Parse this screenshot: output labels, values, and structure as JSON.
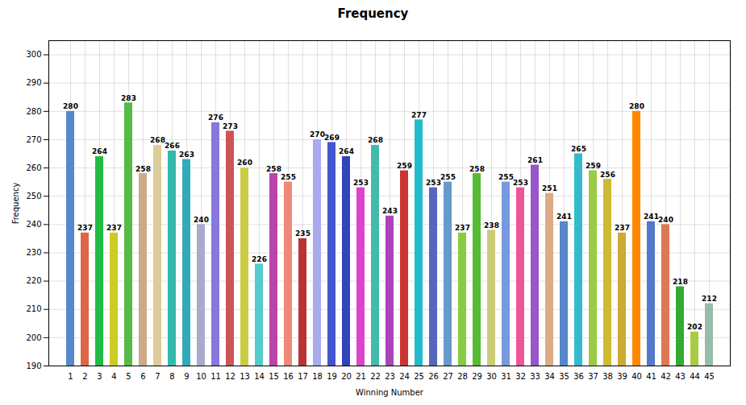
{
  "chart_data": {
    "type": "bar",
    "title": "Frequency",
    "xlabel": "Winning Number",
    "ylabel": "Frequency",
    "categories": [
      1,
      2,
      3,
      4,
      5,
      6,
      7,
      8,
      9,
      10,
      11,
      12,
      13,
      14,
      15,
      16,
      17,
      18,
      19,
      20,
      21,
      22,
      23,
      24,
      25,
      26,
      27,
      28,
      29,
      30,
      31,
      32,
      33,
      34,
      35,
      36,
      37,
      38,
      39,
      40,
      41,
      42,
      43,
      44,
      45
    ],
    "values": [
      280,
      237,
      264,
      237,
      283,
      258,
      268,
      266,
      263,
      240,
      276,
      273,
      260,
      226,
      258,
      255,
      235,
      270,
      269,
      264,
      253,
      268,
      243,
      259,
      277,
      253,
      255,
      237,
      258,
      238,
      255,
      253,
      261,
      251,
      241,
      265,
      259,
      256,
      237,
      280,
      241,
      240,
      218,
      202,
      212
    ],
    "colors": [
      "#5588CC",
      "#DD6644",
      "#22BB44",
      "#CCCC22",
      "#55BB44",
      "#CCAA88",
      "#DDCC99",
      "#33BBAA",
      "#33AABB",
      "#AAAACC",
      "#8877DD",
      "#CC5555",
      "#CCCC44",
      "#55CCCC",
      "#BB44AA",
      "#EE8877",
      "#BB3333",
      "#AAAAEE",
      "#4455CC",
      "#3344BB",
      "#DD44CC",
      "#44BBAA",
      "#AA44BB",
      "#CC3333",
      "#22BBCC",
      "#5566BB",
      "#6699CC",
      "#88CC44",
      "#55BB33",
      "#CCCC77",
      "#7799DD",
      "#EE5599",
      "#9955CC",
      "#DDAA88",
      "#5588CC",
      "#33BBCC",
      "#99CC44",
      "#CCBB33",
      "#CCAA33",
      "#FF8800",
      "#5577CC",
      "#DD7755",
      "#33AA33",
      "#AACC44",
      "#99BBAA"
    ],
    "ylim": [
      190,
      305
    ],
    "yticks": [
      190,
      200,
      210,
      220,
      230,
      240,
      250,
      260,
      270,
      280,
      290,
      300
    ],
    "grid": true,
    "data_labels": true
  }
}
